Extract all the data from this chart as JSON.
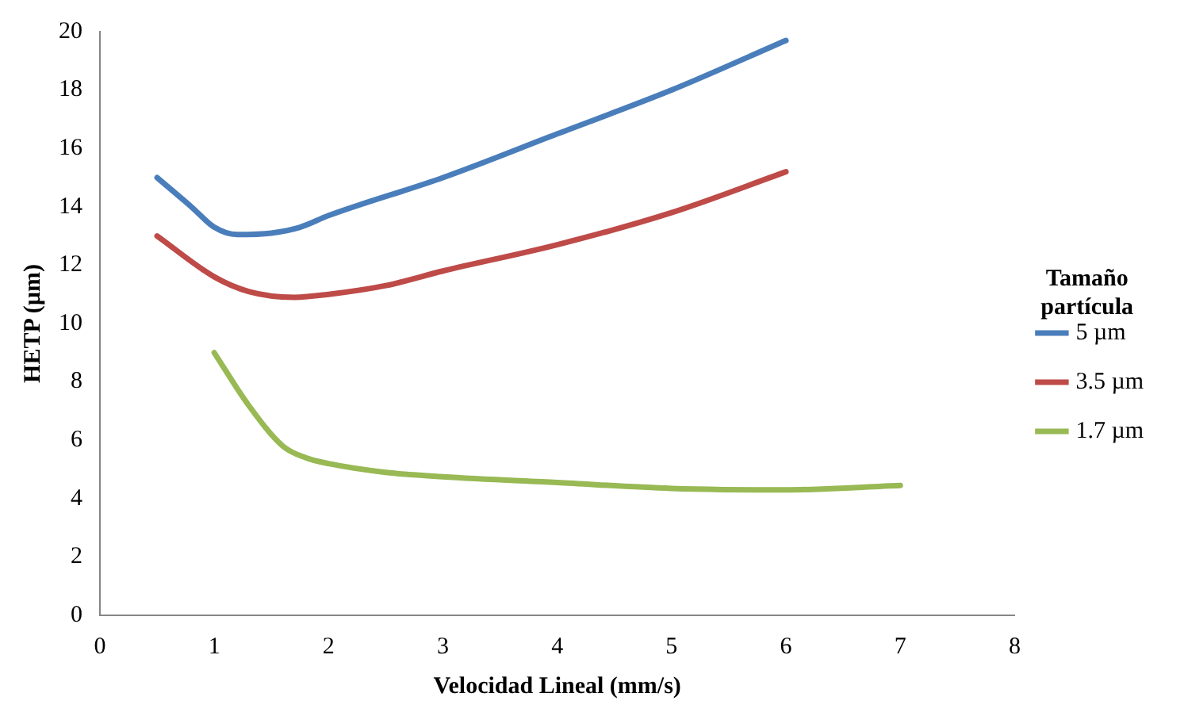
{
  "chart_data": {
    "type": "line",
    "xlabel": "Velocidad Lineal (mm/s)",
    "ylabel": "HETP (µm)",
    "legend_title": "Tamaño partícula",
    "legend": "right",
    "grid": false,
    "marker": "none",
    "line_style": "solid",
    "xlim": [
      0,
      8
    ],
    "xticks": [
      0,
      1,
      2,
      3,
      4,
      5,
      6,
      7,
      8
    ],
    "ylim": [
      0,
      20
    ],
    "yticks": [
      0,
      2,
      4,
      6,
      8,
      10,
      12,
      14,
      16,
      18,
      20
    ],
    "series": [
      {
        "name": "5 µm",
        "color": "#4a7ebb",
        "x": [
          0.5,
          0.8,
          1,
          1.2,
          1.5,
          1.75,
          2,
          3,
          4,
          5,
          6
        ],
        "values": [
          15,
          14,
          13.3,
          13.05,
          13.1,
          13.3,
          13.7,
          15,
          16.5,
          18,
          19.7
        ]
      },
      {
        "name": "3.5 µm",
        "color": "#be4b48",
        "x": [
          0.5,
          1,
          1.3,
          1.7,
          2,
          2.5,
          3,
          4,
          5,
          6
        ],
        "values": [
          13,
          11.6,
          11.1,
          10.9,
          11,
          11.3,
          11.8,
          12.7,
          13.8,
          15.2
        ]
      },
      {
        "name": "1.7 µm",
        "color": "#98b954",
        "x": [
          1,
          1.3,
          1.6,
          1.8,
          2,
          2.5,
          3,
          4,
          5,
          6,
          7
        ],
        "values": [
          9,
          7.2,
          5.8,
          5.4,
          5.2,
          4.9,
          4.75,
          4.55,
          4.35,
          4.3,
          4.45
        ]
      }
    ]
  }
}
